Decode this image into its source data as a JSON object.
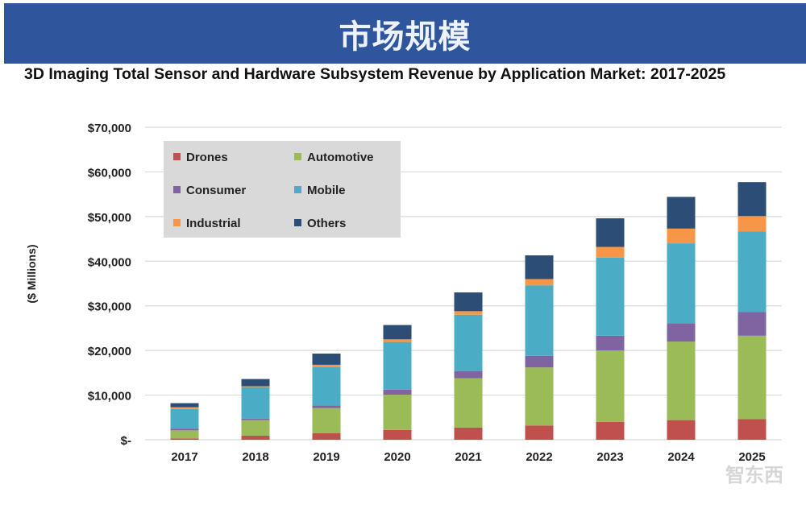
{
  "banner": {
    "title": "市场规模"
  },
  "watermark": "智东西",
  "chart_data": {
    "type": "bar",
    "stacked": true,
    "title": "3D Imaging Total Sensor and Hardware Subsystem Revenue by Application Market: 2017-2025",
    "xlabel": "",
    "ylabel": "($ Millions)",
    "ylim": [
      0,
      70000
    ],
    "yticks": [
      0,
      10000,
      20000,
      30000,
      40000,
      50000,
      60000,
      70000
    ],
    "ytick_labels": [
      "$-",
      "$10,000",
      "$20,000",
      "$30,000",
      "$40,000",
      "$50,000",
      "$60,000",
      "$70,000"
    ],
    "grid": true,
    "legend_position": "top-left",
    "categories": [
      "2017",
      "2018",
      "2019",
      "2020",
      "2021",
      "2022",
      "2023",
      "2024",
      "2025"
    ],
    "series": [
      {
        "name": "Drones",
        "color": "#c0504d",
        "values": [
          300,
          900,
          1500,
          2200,
          2750,
          3200,
          4000,
          4400,
          4600
        ]
      },
      {
        "name": "Automotive",
        "color": "#9bbb59",
        "values": [
          1800,
          3500,
          5600,
          7900,
          11050,
          13000,
          16000,
          17600,
          18700
        ]
      },
      {
        "name": "Consumer",
        "color": "#8064a2",
        "values": [
          400,
          300,
          600,
          1100,
          1600,
          2600,
          3300,
          4100,
          5300
        ]
      },
      {
        "name": "Mobile",
        "color": "#4bacc6",
        "values": [
          4400,
          7100,
          8600,
          10700,
          12600,
          15800,
          17500,
          17900,
          18100
        ]
      },
      {
        "name": "Industrial",
        "color": "#f79646",
        "values": [
          400,
          200,
          500,
          600,
          800,
          1400,
          2400,
          3300,
          3400
        ]
      },
      {
        "name": "Others",
        "color": "#2c4d75",
        "values": [
          900,
          1600,
          2500,
          3200,
          4200,
          5300,
          6400,
          7100,
          7600
        ]
      }
    ]
  }
}
